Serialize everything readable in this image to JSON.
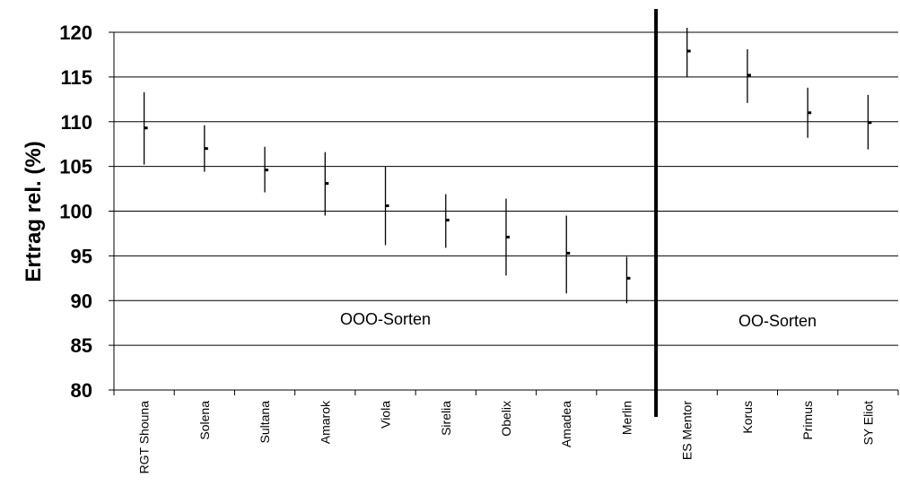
{
  "chart_data": {
    "type": "errorbar",
    "ylabel": "Ertrag rel. (%)",
    "xlabel": "",
    "ylim": [
      80,
      120
    ],
    "yticks": [
      "80",
      "85",
      "90",
      "95",
      "100",
      "105",
      "110",
      "115",
      "120"
    ],
    "grid": "horizontal",
    "categories": [
      "RGT Shouna",
      "Solena",
      "Sultana",
      "Amarok",
      "Viola",
      "Sirelia",
      "Obelix",
      "Amadea",
      "Merlin",
      "ES Mentor",
      "Korus",
      "Primus",
      "SY Eliot"
    ],
    "mean": [
      109.3,
      107.0,
      104.6,
      103.1,
      100.6,
      99.0,
      97.1,
      95.3,
      92.5,
      117.9,
      115.2,
      111.0,
      109.9
    ],
    "low": [
      105.2,
      104.4,
      102.1,
      99.5,
      96.2,
      95.9,
      92.8,
      90.8,
      89.7,
      115.0,
      112.1,
      108.2,
      106.9
    ],
    "high": [
      113.3,
      109.6,
      107.2,
      106.6,
      105.0,
      101.9,
      101.4,
      99.5,
      94.9,
      120.5,
      118.1,
      113.8,
      113.0
    ],
    "separator_after_index": 8,
    "group_labels": [
      {
        "text": "OOO-Sorten",
        "y": 88
      },
      {
        "text": "OO-Sorten",
        "y": 87.8
      }
    ]
  },
  "colors": {
    "line": "#000000",
    "background": "#ffffff"
  }
}
